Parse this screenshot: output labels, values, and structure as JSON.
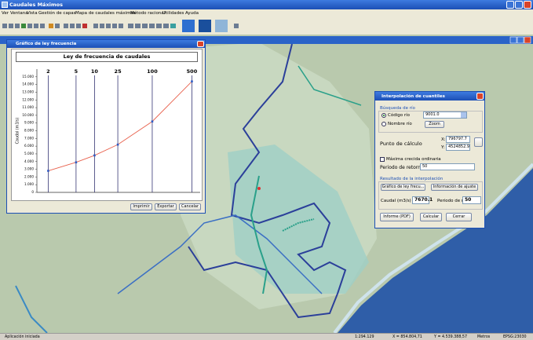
{
  "window": {
    "title": "Caudales Máximos"
  },
  "menu": [
    "Ver",
    "Ventana",
    "Vista",
    "Gestión de capas",
    "Mapa de caudales máximos",
    "Método racional",
    "Utilidades",
    "Ayuda"
  ],
  "chart_window": {
    "title": "Gráfico de ley frecuencia",
    "buttons": [
      "Imprimir",
      "Exportar",
      "Cancelar"
    ]
  },
  "chart_data": {
    "type": "line",
    "title": "Ley de frecuencia de caudales",
    "y_label": "Caudal (m3/s)",
    "x": [
      2,
      5,
      10,
      25,
      100,
      500
    ],
    "values": [
      2800,
      3900,
      4800,
      6200,
      9200,
      14400
    ],
    "x_scale": "gumbel",
    "xlim": [
      1.5,
      700
    ],
    "xticks": [
      2,
      5,
      10,
      25,
      100,
      500
    ],
    "ylim": [
      0,
      16000
    ],
    "yticks": [
      0,
      {
        "value": 1000,
        "label": "1.000"
      },
      {
        "value": 2000,
        "label": "2.000"
      },
      {
        "value": 3000,
        "label": "3.000"
      },
      {
        "value": 4000,
        "label": "4.000"
      },
      {
        "value": 5000,
        "label": "5.000"
      },
      {
        "value": 6000,
        "label": "6.000"
      },
      {
        "value": 7000,
        "label": "7.000"
      },
      {
        "value": 8000,
        "label": "8.000"
      },
      {
        "value": 9000,
        "label": "9.000"
      },
      {
        "value": 10000,
        "label": "10.000"
      },
      {
        "value": 11000,
        "label": "11.000"
      },
      {
        "value": 12000,
        "label": "12.000"
      },
      {
        "value": 13000,
        "label": "13.000"
      },
      {
        "value": 14000,
        "label": "14.000"
      },
      {
        "value": 15000,
        "label": "15.000"
      }
    ],
    "grid": "x",
    "line_color": "#e8604c",
    "marker_color": "#2f5cc4"
  },
  "dialog": {
    "title": "Interpolación de cuantiles",
    "search_group": "Búsqueda de río",
    "radio_code": "Código río",
    "code_value": "9001.0",
    "radio_name": "Nombre río",
    "zoom": "Zoom",
    "point_label": "Punto de cálculo",
    "x_label": "X:",
    "x_value": "796797.7",
    "y_label": "Y:",
    "y_value": "4524852.9",
    "checkbox": "Máxima crecida ordinaria",
    "period_label": "Periodo de retorno:",
    "period_value": "50",
    "result_group": "Resultado de la interpolación",
    "chart_button": "Gráfico de ley frecu...",
    "info_button": "Información de ajuste",
    "flow_label": "Caudal (m3/s)",
    "flow_value": "7670.1",
    "result_period_label": "Periodo de retorno :",
    "result_period_value": "50",
    "report_button": "Informe (PDF)",
    "calc_button": "Calcular",
    "close_button": "Cerrar"
  },
  "status_bar": [
    "Aplicación iniciada",
    "1:294.129",
    "X = 854.804,71",
    "Y = 4.539.388,57",
    "Metros",
    "EPSG:23030"
  ]
}
